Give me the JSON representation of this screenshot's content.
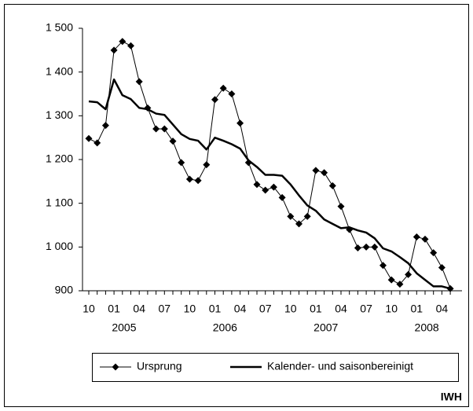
{
  "chart_data": {
    "type": "line",
    "categories": [
      "10",
      null,
      null,
      "01",
      null,
      null,
      "04",
      null,
      null,
      "07",
      null,
      null,
      "10",
      null,
      null,
      "01",
      null,
      null,
      "04",
      null,
      null,
      "07",
      null,
      null,
      "10",
      null,
      null,
      "01",
      null,
      null,
      "04",
      null,
      null,
      "07",
      null,
      null,
      "10",
      null,
      null,
      "01",
      null,
      null,
      "04",
      null
    ],
    "years": [
      "2005",
      "2006",
      "2007",
      "2008"
    ],
    "series": [
      {
        "name": "Ursprung",
        "color": "#000000",
        "marker": "diamond",
        "values": [
          1248,
          1238,
          1278,
          1450,
          1470,
          1460,
          1378,
          1318,
          1270,
          1270,
          1242,
          1193,
          1155,
          1152,
          1188,
          1337,
          1363,
          1350,
          1283,
          1193,
          1143,
          1130,
          1137,
          1113,
          1070,
          1053,
          1070,
          1175,
          1170,
          1140,
          1093,
          1040,
          998,
          1000,
          1000,
          958,
          925,
          915,
          937,
          1023,
          1018,
          987,
          953,
          905
        ]
      },
      {
        "name": "Kalender- und saisonbereinigt",
        "color": "#000000",
        "marker": "none",
        "values": [
          1333,
          1331,
          1315,
          1383,
          1347,
          1338,
          1318,
          1315,
          1305,
          1302,
          1280,
          1258,
          1247,
          1243,
          1223,
          1250,
          1243,
          1235,
          1225,
          1198,
          1183,
          1165,
          1165,
          1163,
          1143,
          1118,
          1095,
          1083,
          1063,
          1053,
          1043,
          1045,
          1038,
          1033,
          1020,
          997,
          990,
          977,
          963,
          940,
          925,
          910,
          910,
          905
        ]
      }
    ],
    "ylim": [
      900,
      1500
    ],
    "yticks": [
      {
        "value": 900,
        "label": "900"
      },
      {
        "value": 1000,
        "label": "1 000"
      },
      {
        "value": 1100,
        "label": "1 100"
      },
      {
        "value": 1200,
        "label": "1 200"
      },
      {
        "value": 1300,
        "label": "1 300"
      },
      {
        "value": 1400,
        "label": "1 400"
      },
      {
        "value": 1500,
        "label": "1 500"
      }
    ],
    "grid": false,
    "legend": "bottom",
    "source": "IWH"
  }
}
